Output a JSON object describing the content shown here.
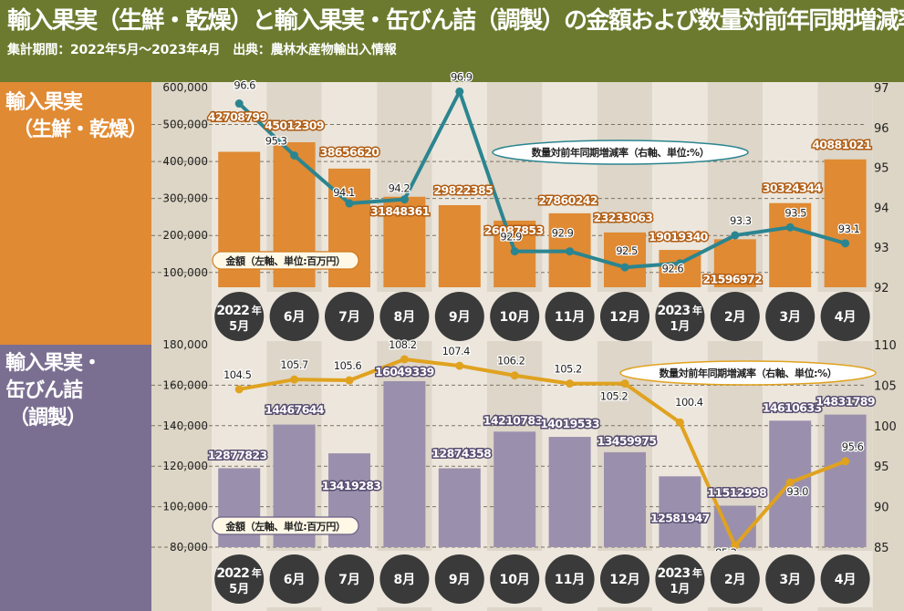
{
  "header": {
    "title": "輸入果実（生鮮・乾燥）と輸入果実・缶びん詰（調製）の金額および数量対前年同期増減率",
    "subtitle": "集計期間：2022年5月～2023年4月　出典：農林水産物輸出入情報"
  },
  "colors": {
    "header_bg": "#6b7a2e",
    "top_panel": "#e08a33",
    "bottom_panel": "#7a6f91",
    "top_bar": "#e08a33",
    "bottom_bar": "#9a90ad",
    "top_line": "#2b8590",
    "bottom_line": "#e0a21f",
    "axis_bg": "#ddd6c6",
    "band_light": "#ece6dc",
    "band_dark": "#ddd6c9",
    "circle": "#3a3a3a"
  },
  "chart_data": [
    {
      "type": "bar",
      "panel_title": [
        "輸入果実",
        "（生鮮・乾燥）"
      ],
      "categories": [
        {
          "year": "2022",
          "nen": "年",
          "month": "5月"
        },
        {
          "year": "",
          "nen": "",
          "month": "6月"
        },
        {
          "year": "",
          "nen": "",
          "month": "7月"
        },
        {
          "year": "",
          "nen": "",
          "month": "8月"
        },
        {
          "year": "",
          "nen": "",
          "month": "9月"
        },
        {
          "year": "",
          "nen": "",
          "month": "10月"
        },
        {
          "year": "",
          "nen": "",
          "month": "11月"
        },
        {
          "year": "",
          "nen": "",
          "month": "12月"
        },
        {
          "year": "2023",
          "nen": "年",
          "month": "1月"
        },
        {
          "year": "",
          "nen": "",
          "month": "2月"
        },
        {
          "year": "",
          "nen": "",
          "month": "3月"
        },
        {
          "year": "",
          "nen": "",
          "month": "4月"
        }
      ],
      "series": [
        {
          "name": "金額（左軸、単位:百万円）",
          "kind": "bar",
          "values": [
            42708799,
            45012309,
            38656620,
            31848361,
            29822385,
            26087853,
            27860242,
            23233063,
            19019340,
            21596972,
            30324344,
            40881021
          ],
          "labels": [
            "42708799",
            "45012309",
            "38656620",
            "31848361",
            "29822385",
            "26087853",
            "27860242",
            "23233063",
            "19019340",
            "21596972",
            "30324344",
            "40881021"
          ]
        },
        {
          "name": "数量対前年同期増減率（右軸、単位:%）",
          "kind": "line",
          "values": [
            96.6,
            95.3,
            94.1,
            94.2,
            96.9,
            92.9,
            92.9,
            92.5,
            92.6,
            93.3,
            93.5,
            93.1
          ],
          "labels": [
            "96.6",
            "95.3",
            "94.1",
            "94.2",
            "96.9",
            "92.9",
            "92.9",
            "92.5",
            "92.6",
            "93.3",
            "93.5",
            "93.1"
          ]
        }
      ],
      "y_left": {
        "range": [
          60000,
          600000
        ],
        "ticks": [
          {
            "v": 100000,
            "t": "100,000"
          },
          {
            "v": 200000,
            "t": "200,000"
          },
          {
            "v": 300000,
            "t": "300,000"
          },
          {
            "v": 400000,
            "t": "400,000"
          },
          {
            "v": 500000,
            "t": "500,000"
          },
          {
            "v": 600000,
            "t": "600,000"
          }
        ]
      },
      "y_right": {
        "range": [
          92,
          97
        ],
        "ticks": [
          {
            "v": 92,
            "t": "92"
          },
          {
            "v": 93,
            "t": "93"
          },
          {
            "v": 94,
            "t": "94"
          },
          {
            "v": 95,
            "t": "95"
          },
          {
            "v": 96,
            "t": "96"
          },
          {
            "v": 97,
            "t": "97"
          }
        ]
      },
      "legend_bar": "金額（左軸、単位:百万円）",
      "legend_line": "数量対前年同期増減率（右軸、単位:%）"
    },
    {
      "type": "bar",
      "panel_title": [
        "輸入果実・",
        "缶びん詰",
        "（調製）"
      ],
      "categories": [
        {
          "year": "2022",
          "nen": "年",
          "month": "5月"
        },
        {
          "year": "",
          "nen": "",
          "month": "6月"
        },
        {
          "year": "",
          "nen": "",
          "month": "7月"
        },
        {
          "year": "",
          "nen": "",
          "month": "8月"
        },
        {
          "year": "",
          "nen": "",
          "month": "9月"
        },
        {
          "year": "",
          "nen": "",
          "month": "10月"
        },
        {
          "year": "",
          "nen": "",
          "month": "11月"
        },
        {
          "year": "",
          "nen": "",
          "month": "12月"
        },
        {
          "year": "2023",
          "nen": "年",
          "month": "1月"
        },
        {
          "year": "",
          "nen": "",
          "month": "2月"
        },
        {
          "year": "",
          "nen": "",
          "month": "3月"
        },
        {
          "year": "",
          "nen": "",
          "month": "4月"
        }
      ],
      "series": [
        {
          "name": "金額（左軸、単位:百万円）",
          "kind": "bar",
          "values": [
            12877823,
            14467644,
            13419283,
            16049339,
            12874358,
            14210783,
            14019533,
            13459975,
            12581947,
            11512998,
            14610633,
            14831789
          ],
          "labels": [
            "12877823",
            "14467644",
            "13419283",
            "16049339",
            "12874358",
            "14210783",
            "14019533",
            "13459975",
            "12581947",
            "11512998",
            "14610633",
            "14831789"
          ]
        },
        {
          "name": "数量対前年同期増減率（右軸、単位:%）",
          "kind": "line",
          "values": [
            104.5,
            105.7,
            105.6,
            108.2,
            107.4,
            106.2,
            105.2,
            105.2,
            100.4,
            85.2,
            93.0,
            95.6
          ],
          "labels": [
            "104.5",
            "105.7",
            "105.6",
            "108.2",
            "107.4",
            "106.2",
            "105.2",
            "105.2",
            "100.4",
            "85.2",
            "93.0",
            "95.6"
          ]
        }
      ],
      "y_left": {
        "range": [
          80000,
          180000
        ],
        "ticks": [
          {
            "v": 80000,
            "t": "80,000"
          },
          {
            "v": 100000,
            "t": "100,000"
          },
          {
            "v": 120000,
            "t": "120,000"
          },
          {
            "v": 140000,
            "t": "140,000"
          },
          {
            "v": 160000,
            "t": "160,000"
          },
          {
            "v": 180000,
            "t": "180,000"
          }
        ]
      },
      "y_right": {
        "range": [
          85,
          110
        ],
        "ticks": [
          {
            "v": 85,
            "t": "85"
          },
          {
            "v": 90,
            "t": "90"
          },
          {
            "v": 95,
            "t": "95"
          },
          {
            "v": 100,
            "t": "100"
          },
          {
            "v": 105,
            "t": "105"
          },
          {
            "v": 110,
            "t": "110"
          }
        ]
      },
      "legend_bar": "金額（左軸、単位:百万円）",
      "legend_line": "数量対前年同期増減率（右軸、単位:%）"
    }
  ]
}
